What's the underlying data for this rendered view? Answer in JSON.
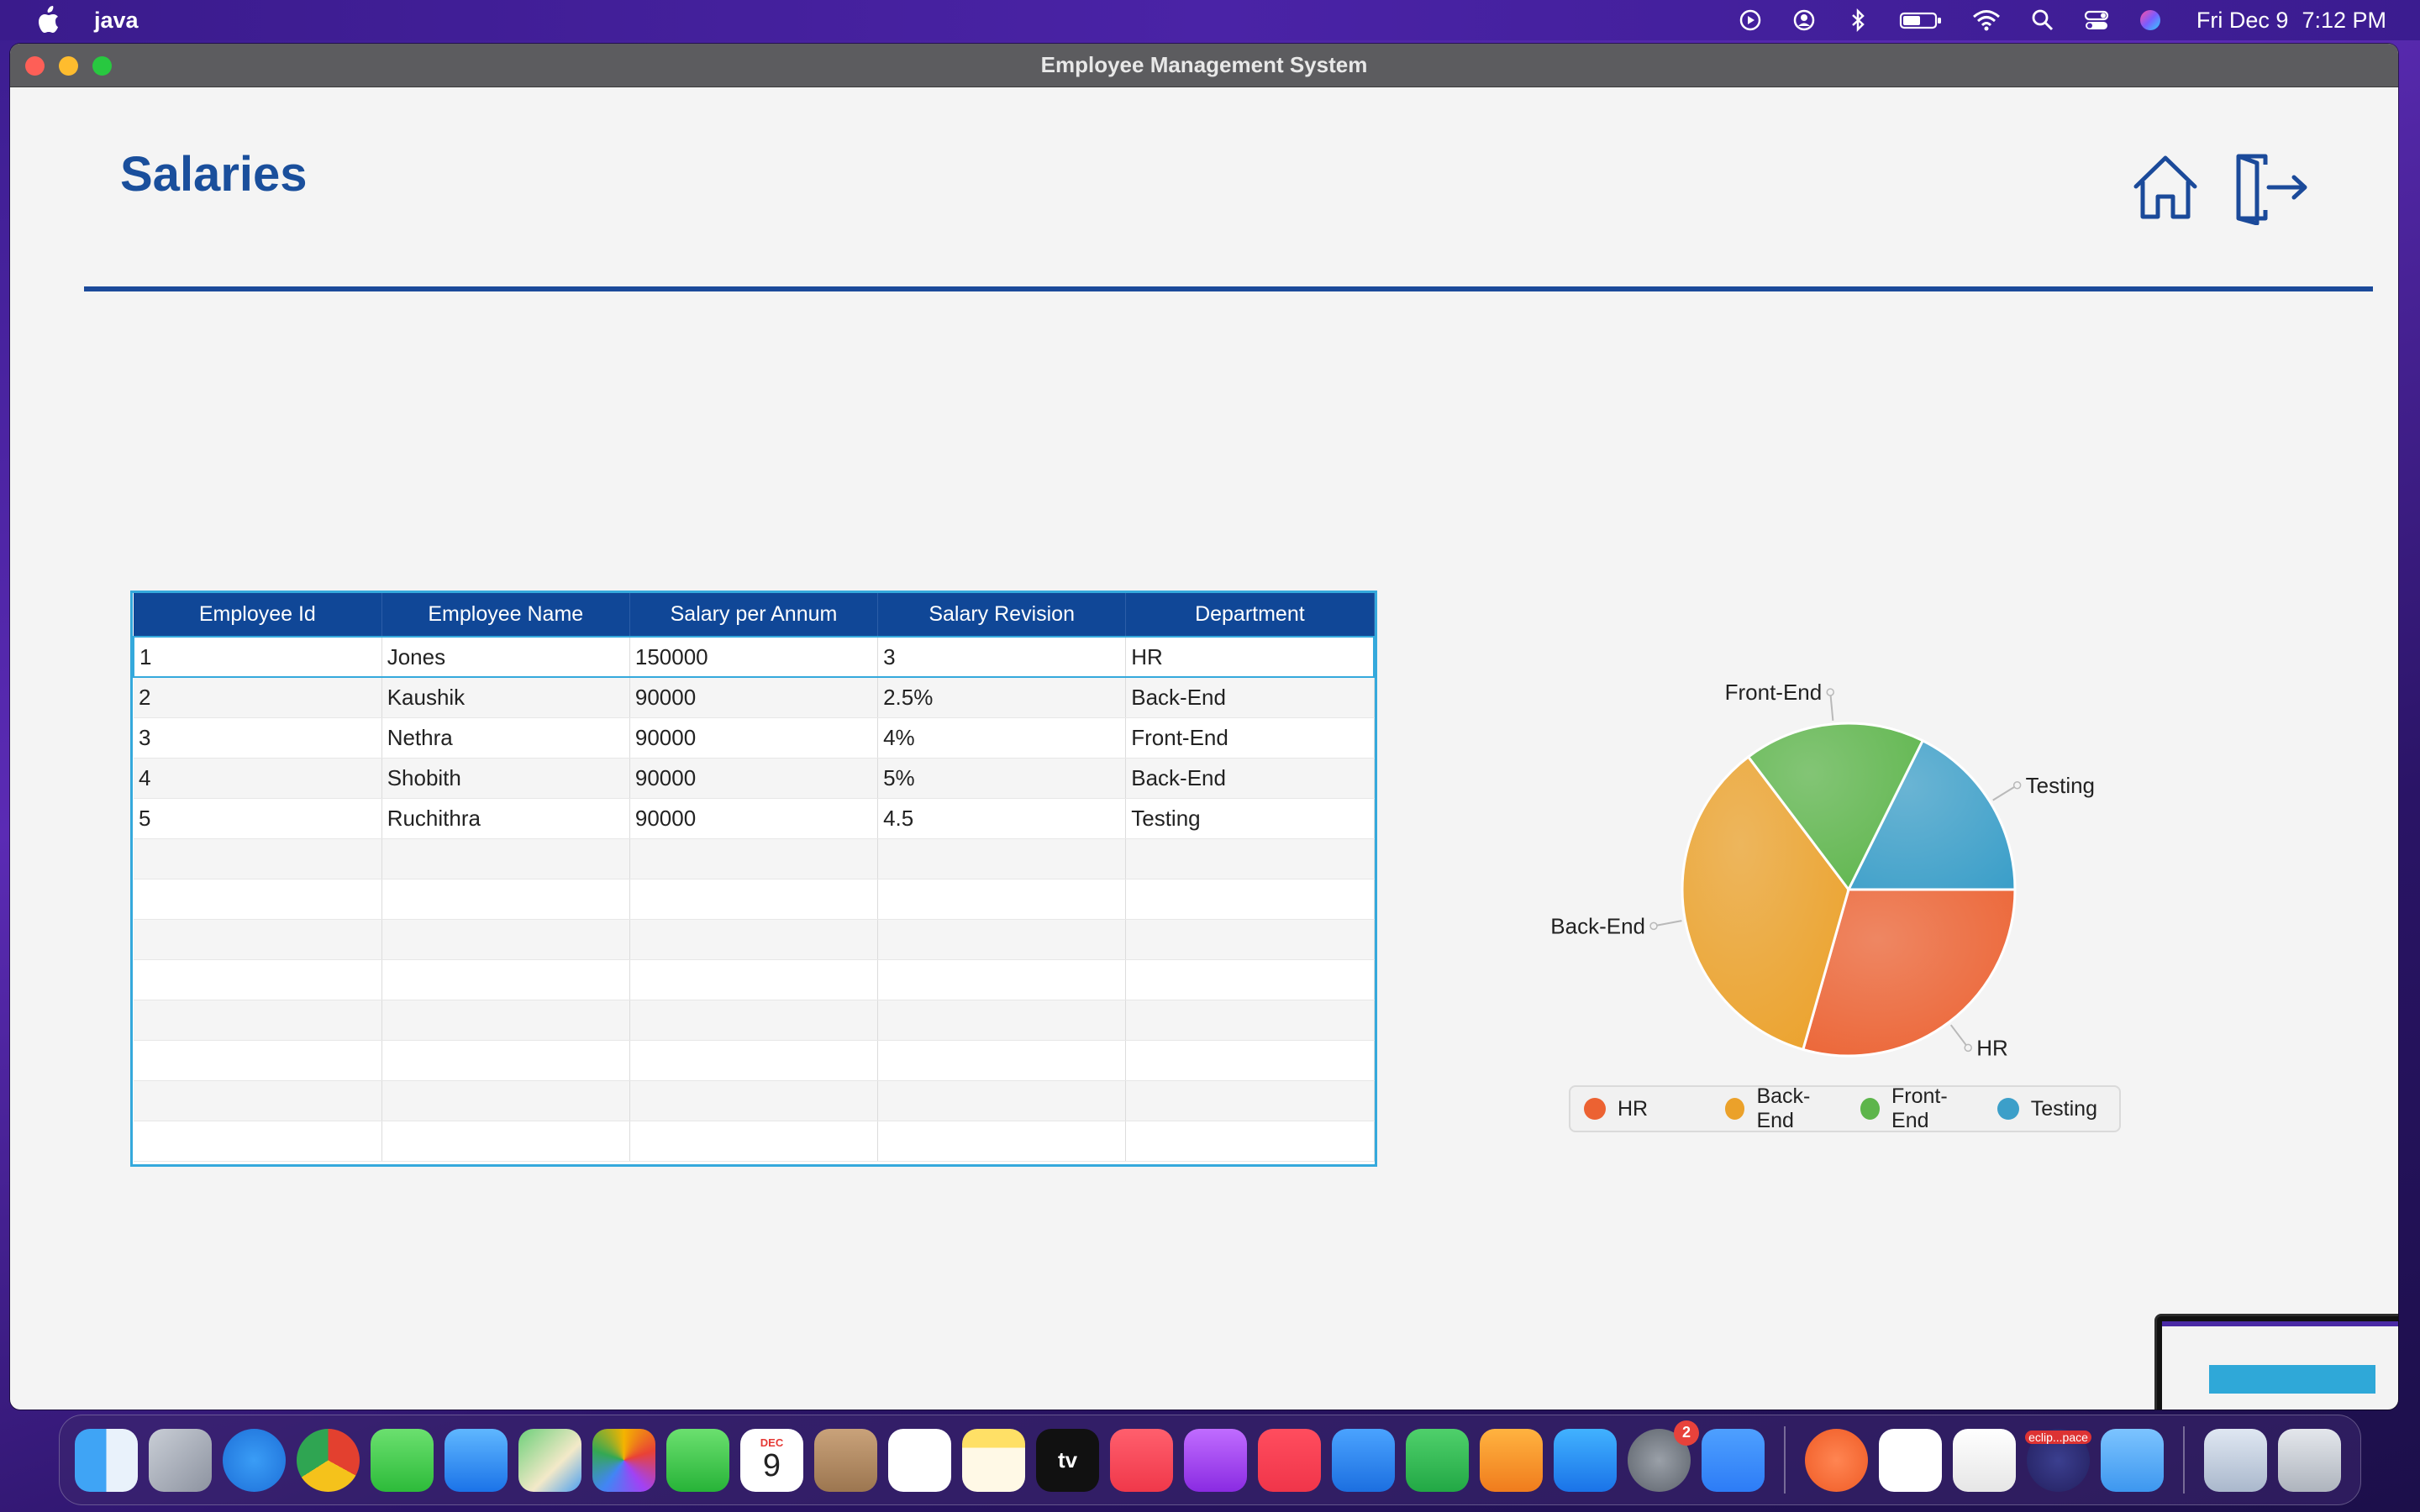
{
  "menubar": {
    "app_name": "java",
    "date": "Fri Dec 9",
    "time": "7:12 PM"
  },
  "window": {
    "title": "Employee Management System"
  },
  "page": {
    "title": "Salaries",
    "home_icon": "home-icon",
    "logout_icon": "logout-icon",
    "accent_color": "#1b4a9a"
  },
  "table": {
    "columns": [
      "Employee Id",
      "Employee Name",
      "Salary per Annum",
      "Salary Revision",
      "Department"
    ],
    "rows": [
      [
        "1",
        "Jones",
        "150000",
        "3",
        "HR"
      ],
      [
        "2",
        "Kaushik",
        "90000",
        "2.5%",
        "Back-End"
      ],
      [
        "3",
        "Nethra",
        "90000",
        "4%",
        "Front-End"
      ],
      [
        "4",
        "Shobith",
        "90000",
        "5%",
        "Back-End"
      ],
      [
        "5",
        "Ruchithra",
        "90000",
        "4.5",
        "Testing"
      ]
    ],
    "selected_row": 0
  },
  "chart_data": {
    "type": "pie",
    "categories": [
      "HR",
      "Back-End",
      "Front-End",
      "Testing"
    ],
    "values": [
      150000,
      180000,
      90000,
      90000
    ],
    "colors": [
      "#ec6232",
      "#eba12a",
      "#5db54b",
      "#3c9fc9"
    ],
    "legend": "bottom"
  },
  "dock": {
    "items": [
      {
        "name": "finder"
      },
      {
        "name": "launchpad"
      },
      {
        "name": "safari"
      },
      {
        "name": "chrome"
      },
      {
        "name": "messages"
      },
      {
        "name": "mail"
      },
      {
        "name": "maps"
      },
      {
        "name": "photos"
      },
      {
        "name": "facetime"
      },
      {
        "name": "calendar",
        "label": "9",
        "month": "DEC"
      },
      {
        "name": "contacts"
      },
      {
        "name": "reminders"
      },
      {
        "name": "notes"
      },
      {
        "name": "apple-tv",
        "label": "tv"
      },
      {
        "name": "music"
      },
      {
        "name": "podcasts"
      },
      {
        "name": "news"
      },
      {
        "name": "keynote"
      },
      {
        "name": "numbers"
      },
      {
        "name": "pages"
      },
      {
        "name": "app-store"
      },
      {
        "name": "system-preferences",
        "badge": "2"
      },
      {
        "name": "zoom"
      },
      {
        "name": "postman"
      },
      {
        "name": "mongodb-compass"
      },
      {
        "name": "textedit"
      },
      {
        "name": "eclipse",
        "label": "eclip...pace"
      },
      {
        "name": "folder"
      },
      {
        "name": "preview"
      },
      {
        "name": "trash"
      }
    ]
  }
}
